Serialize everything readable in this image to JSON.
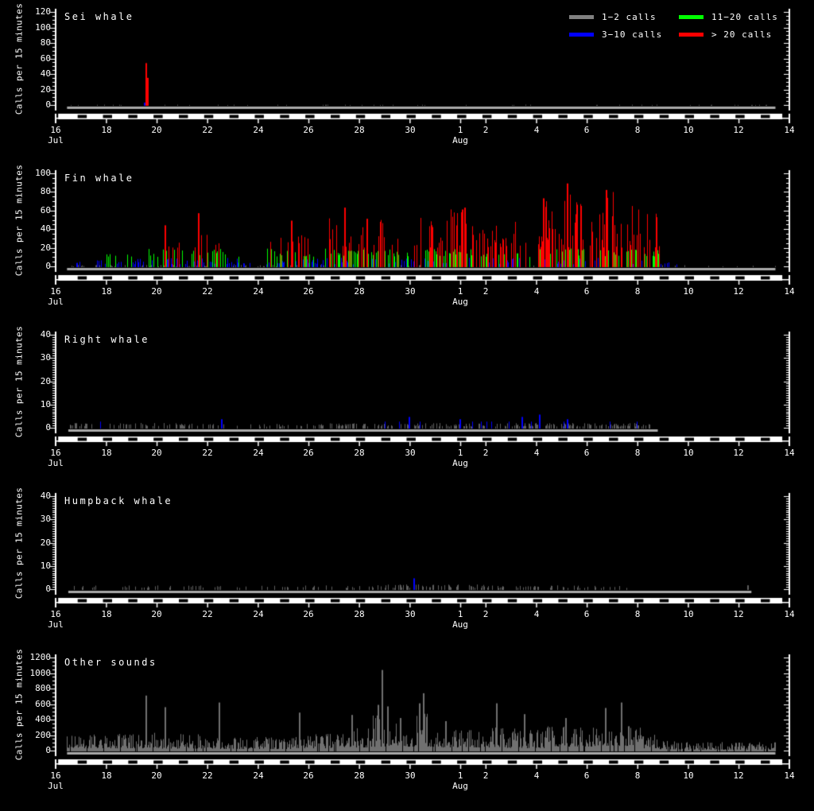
{
  "colors": {
    "background": "#000000",
    "axis": "#ffffff",
    "text": "#ffffff",
    "baseline_strip": "#a9a9a9",
    "bar_gray": "#5f5f5f",
    "bar_blue": "#0000ff",
    "bar_green": "#00ff00",
    "bar_red": "#ff0000",
    "other_mono": "#707070",
    "night": "#000000",
    "day": "#ffffff"
  },
  "y_axis_label": "Calls per 15 minutes",
  "legend": {
    "items": [
      {
        "label": "1−2 calls",
        "color": "#808080"
      },
      {
        "label": "3−10 calls",
        "color": "#0000ff"
      },
      {
        "label": "11−20 calls",
        "color": "#00ff00"
      },
      {
        "label": "> 20 calls",
        "color": "#ff0000"
      }
    ]
  },
  "x_axis": {
    "note": "day 0 = 16 Jul, axis spans 29 days to 14 Aug",
    "span_days": 29,
    "ticks": [
      {
        "day": 0,
        "label": "16",
        "month": "Jul"
      },
      {
        "day": 2,
        "label": "18"
      },
      {
        "day": 4,
        "label": "20"
      },
      {
        "day": 6,
        "label": "22"
      },
      {
        "day": 8,
        "label": "24"
      },
      {
        "day": 10,
        "label": "26"
      },
      {
        "day": 12,
        "label": "28"
      },
      {
        "day": 14,
        "label": "30"
      },
      {
        "day": 16,
        "label": "1",
        "month": "Aug"
      },
      {
        "day": 17,
        "label": "2"
      },
      {
        "day": 19,
        "label": "4"
      },
      {
        "day": 21,
        "label": "6"
      },
      {
        "day": 23,
        "label": "8"
      },
      {
        "day": 25,
        "label": "10"
      },
      {
        "day": 27,
        "label": "12"
      },
      {
        "day": 29,
        "label": "14"
      }
    ]
  },
  "night_bar": {
    "from_day": 0.1,
    "to_day": 28.72,
    "night_center_days": [
      1,
      2,
      3,
      4,
      5,
      6,
      7,
      8,
      9,
      10,
      11,
      12,
      13,
      14,
      15,
      16,
      17,
      18,
      19,
      20,
      21,
      22,
      23,
      24,
      25,
      26,
      27,
      28
    ],
    "night_center_offset": 0.05,
    "night_width_days": 0.36
  },
  "chart_data": [
    {
      "type": "bar",
      "title": "Sei whale",
      "ylim": [
        0,
        120
      ],
      "ytick_interval": 20,
      "yminor_interval": 5,
      "color_mode": "category",
      "data_start_day": 0.45,
      "data_end_day": 28.45,
      "segment_format": "[from_day,to_day,density,max_value,w_gray,w_blue,w_green,w_red]",
      "segments": [
        [
          0.45,
          28.45,
          0.06,
          1.5,
          1,
          0,
          0,
          0
        ]
      ],
      "peak_format": "[day_after_16Jul, calls_per_15min]",
      "peaks": [
        [
          3.5,
          4
        ],
        [
          3.56,
          55
        ],
        [
          3.6,
          36
        ]
      ]
    },
    {
      "type": "bar",
      "title": "Fin whale",
      "ylim": [
        0,
        100
      ],
      "ytick_interval": 20,
      "yminor_interval": 5,
      "color_mode": "category",
      "data_start_day": 0.45,
      "data_end_day": 28.45,
      "segment_format": "[from_day,to_day,density,max_value,w_gray,w_blue,w_green,w_red]",
      "segments": [
        [
          0.45,
          1,
          0.35,
          6,
          0.7,
          0.3,
          0,
          0
        ],
        [
          1,
          2,
          0.5,
          9,
          0.5,
          0.5,
          0,
          0
        ],
        [
          2,
          3,
          0.5,
          14,
          0.4,
          0.4,
          0.2,
          0
        ],
        [
          3,
          4,
          0.6,
          20,
          0.3,
          0.4,
          0.3,
          0
        ],
        [
          4,
          5,
          0.65,
          45,
          0.2,
          0.3,
          0.3,
          0.2
        ],
        [
          5,
          6,
          0.65,
          58,
          0.2,
          0.3,
          0.3,
          0.2
        ],
        [
          6,
          6.6,
          0.6,
          28,
          0,
          0.3,
          0.4,
          0.3
        ],
        [
          6.6,
          7.4,
          0.5,
          16,
          0.3,
          0.4,
          0.3,
          0
        ],
        [
          7.4,
          8.3,
          0.35,
          8,
          0.6,
          0.4,
          0,
          0
        ],
        [
          8.3,
          9,
          0.65,
          44,
          0.1,
          0.2,
          0.4,
          0.3
        ],
        [
          9,
          10,
          0.7,
          50,
          0.1,
          0.2,
          0.3,
          0.4
        ],
        [
          10,
          10.6,
          0.6,
          38,
          0.2,
          0.3,
          0.3,
          0.2
        ],
        [
          10.6,
          11.6,
          0.7,
          64,
          0,
          0.2,
          0.3,
          0.5
        ],
        [
          11.6,
          12.1,
          0.6,
          40,
          0,
          0.2,
          0.5,
          0.3
        ],
        [
          12.1,
          13,
          0.7,
          52,
          0,
          0.2,
          0.3,
          0.5
        ],
        [
          13,
          13.6,
          0.65,
          42,
          0,
          0.3,
          0.4,
          0.3
        ],
        [
          13.6,
          14.4,
          0.5,
          30,
          0.2,
          0.4,
          0.3,
          0.1
        ],
        [
          14.4,
          15.5,
          0.7,
          55,
          0,
          0.2,
          0.3,
          0.5
        ],
        [
          15.5,
          16.4,
          0.75,
          64,
          0,
          0.15,
          0.3,
          0.55
        ],
        [
          16.4,
          18,
          0.7,
          52,
          0,
          0.2,
          0.3,
          0.5
        ],
        [
          18,
          18.6,
          0.7,
          50,
          0,
          0.2,
          0.3,
          0.5
        ],
        [
          18.6,
          19,
          0.3,
          8,
          0.6,
          0.3,
          0.1,
          0
        ],
        [
          19,
          19.6,
          0.7,
          74,
          0,
          0.15,
          0.3,
          0.55
        ],
        [
          19.6,
          20.1,
          0.7,
          55,
          0,
          0.2,
          0.3,
          0.5
        ],
        [
          20.1,
          20.8,
          0.75,
          90,
          0,
          0.1,
          0.3,
          0.6
        ],
        [
          20.8,
          21.5,
          0.7,
          50,
          0,
          0.2,
          0.4,
          0.4
        ],
        [
          21.5,
          22.1,
          0.8,
          83,
          0,
          0,
          0.2,
          0.8
        ],
        [
          22.1,
          23,
          0.75,
          70,
          0,
          0.1,
          0.3,
          0.6
        ],
        [
          23,
          23.9,
          0.6,
          65,
          0,
          0.2,
          0.3,
          0.5
        ],
        [
          23.9,
          24.3,
          0.4,
          6,
          0.4,
          0.5,
          0.1,
          0
        ],
        [
          24.3,
          25,
          0.15,
          3,
          0.8,
          0.2,
          0,
          0
        ],
        [
          25,
          28.45,
          0.05,
          1.5,
          1,
          0,
          0,
          0
        ]
      ],
      "peak_format": "[day_after_16Jul, calls_per_15min]",
      "peaks": [
        [
          4.32,
          45
        ],
        [
          5.62,
          58
        ],
        [
          9.3,
          50
        ],
        [
          11.42,
          64
        ],
        [
          12.3,
          52
        ],
        [
          16.05,
          62
        ],
        [
          16.15,
          64
        ],
        [
          19.25,
          74
        ],
        [
          20.2,
          90
        ],
        [
          21.75,
          83
        ]
      ]
    },
    {
      "type": "bar",
      "title": "Right whale",
      "ylim": [
        0,
        40
      ],
      "ytick_interval": 10,
      "yminor_interval": 1,
      "color_mode": "category",
      "data_start_day": 0.5,
      "data_end_day": 23.8,
      "segment_format": "[from_day,to_day,density,max_value,w_gray,w_blue,w_green,w_red]",
      "segments": [
        [
          0.5,
          5.5,
          0.3,
          2.5,
          0.97,
          0.03,
          0,
          0
        ],
        [
          5.5,
          10,
          0.25,
          2,
          1,
          0,
          0,
          0
        ],
        [
          10,
          14.5,
          0.45,
          2.5,
          0.97,
          0.03,
          0,
          0
        ],
        [
          14.5,
          19.5,
          0.4,
          2.5,
          0.95,
          0.05,
          0,
          0
        ],
        [
          19.5,
          23.3,
          0.45,
          3,
          0.95,
          0.05,
          0,
          0
        ],
        [
          23.3,
          23.8,
          0.3,
          2,
          1,
          0,
          0,
          0
        ]
      ],
      "peak_format": "[day_after_16Jul, calls_per_15min]",
      "peaks": [
        [
          6.55,
          4
        ],
        [
          13.95,
          5
        ],
        [
          15.95,
          4
        ],
        [
          18.4,
          5
        ],
        [
          19.1,
          6
        ],
        [
          20.2,
          4
        ]
      ]
    },
    {
      "type": "bar",
      "title": "Humpback whale",
      "ylim": [
        0,
        40
      ],
      "ytick_interval": 10,
      "yminor_interval": 1,
      "color_mode": "category",
      "data_start_day": 0.5,
      "data_end_day": 27.5,
      "segment_format": "[from_day,to_day,density,max_value,w_gray,w_blue,w_green,w_red]",
      "segments": [
        [
          0.5,
          9,
          0.15,
          2,
          1,
          0,
          0,
          0
        ],
        [
          9,
          12,
          0.2,
          2,
          1,
          0,
          0,
          0
        ],
        [
          12,
          17,
          0.3,
          2.5,
          1,
          0,
          0,
          0
        ],
        [
          17,
          22.8,
          0.25,
          2,
          1,
          0,
          0,
          0
        ]
      ],
      "peak_format": "[day_after_16Jul, calls_per_15min]",
      "peaks": [
        [
          14.15,
          5
        ],
        [
          27.35,
          2
        ]
      ]
    },
    {
      "type": "bar",
      "title": "Other sounds",
      "ylim": [
        0,
        1200
      ],
      "ytick_interval": 200,
      "yminor_interval": 50,
      "color_mode": "mono",
      "data_start_day": 0.45,
      "data_end_day": 28.45,
      "segment_format": "[from_day,to_day,density,base_value,max_value]",
      "segments": [
        [
          0.45,
          3.4,
          0.97,
          40,
          230
        ],
        [
          3.4,
          4.2,
          0.97,
          40,
          250
        ],
        [
          4.2,
          6.3,
          0.97,
          35,
          230
        ],
        [
          6.3,
          9.4,
          0.97,
          30,
          190
        ],
        [
          9.4,
          11.4,
          0.97,
          40,
          240
        ],
        [
          11.4,
          12.4,
          0.97,
          50,
          320
        ],
        [
          12.4,
          13.2,
          0.97,
          60,
          480
        ],
        [
          13.2,
          14.2,
          0.97,
          60,
          380
        ],
        [
          14.2,
          14.7,
          0.97,
          80,
          500
        ],
        [
          14.7,
          16.3,
          0.97,
          50,
          300
        ],
        [
          16.3,
          17.6,
          0.97,
          50,
          330
        ],
        [
          17.6,
          19.3,
          0.97,
          40,
          300
        ],
        [
          19.3,
          21.3,
          0.97,
          60,
          340
        ],
        [
          21.3,
          23.2,
          0.97,
          70,
          380
        ],
        [
          23.2,
          23.8,
          0.97,
          40,
          250
        ],
        [
          23.8,
          24.8,
          0.95,
          25,
          140
        ],
        [
          24.8,
          28.45,
          0.95,
          20,
          120
        ]
      ],
      "peak_format": "[day_after_16Jul, calls_per_15min]",
      "peaks": [
        [
          3.55,
          720
        ],
        [
          4.3,
          570
        ],
        [
          6.45,
          630
        ],
        [
          9.62,
          500
        ],
        [
          11.7,
          470
        ],
        [
          12.72,
          600
        ],
        [
          12.88,
          1050
        ],
        [
          13.1,
          580
        ],
        [
          13.62,
          430
        ],
        [
          14.35,
          620
        ],
        [
          14.52,
          750
        ],
        [
          15.4,
          390
        ],
        [
          17.42,
          620
        ],
        [
          18.5,
          480
        ],
        [
          20.15,
          430
        ],
        [
          21.7,
          560
        ],
        [
          22.35,
          630
        ]
      ]
    }
  ]
}
